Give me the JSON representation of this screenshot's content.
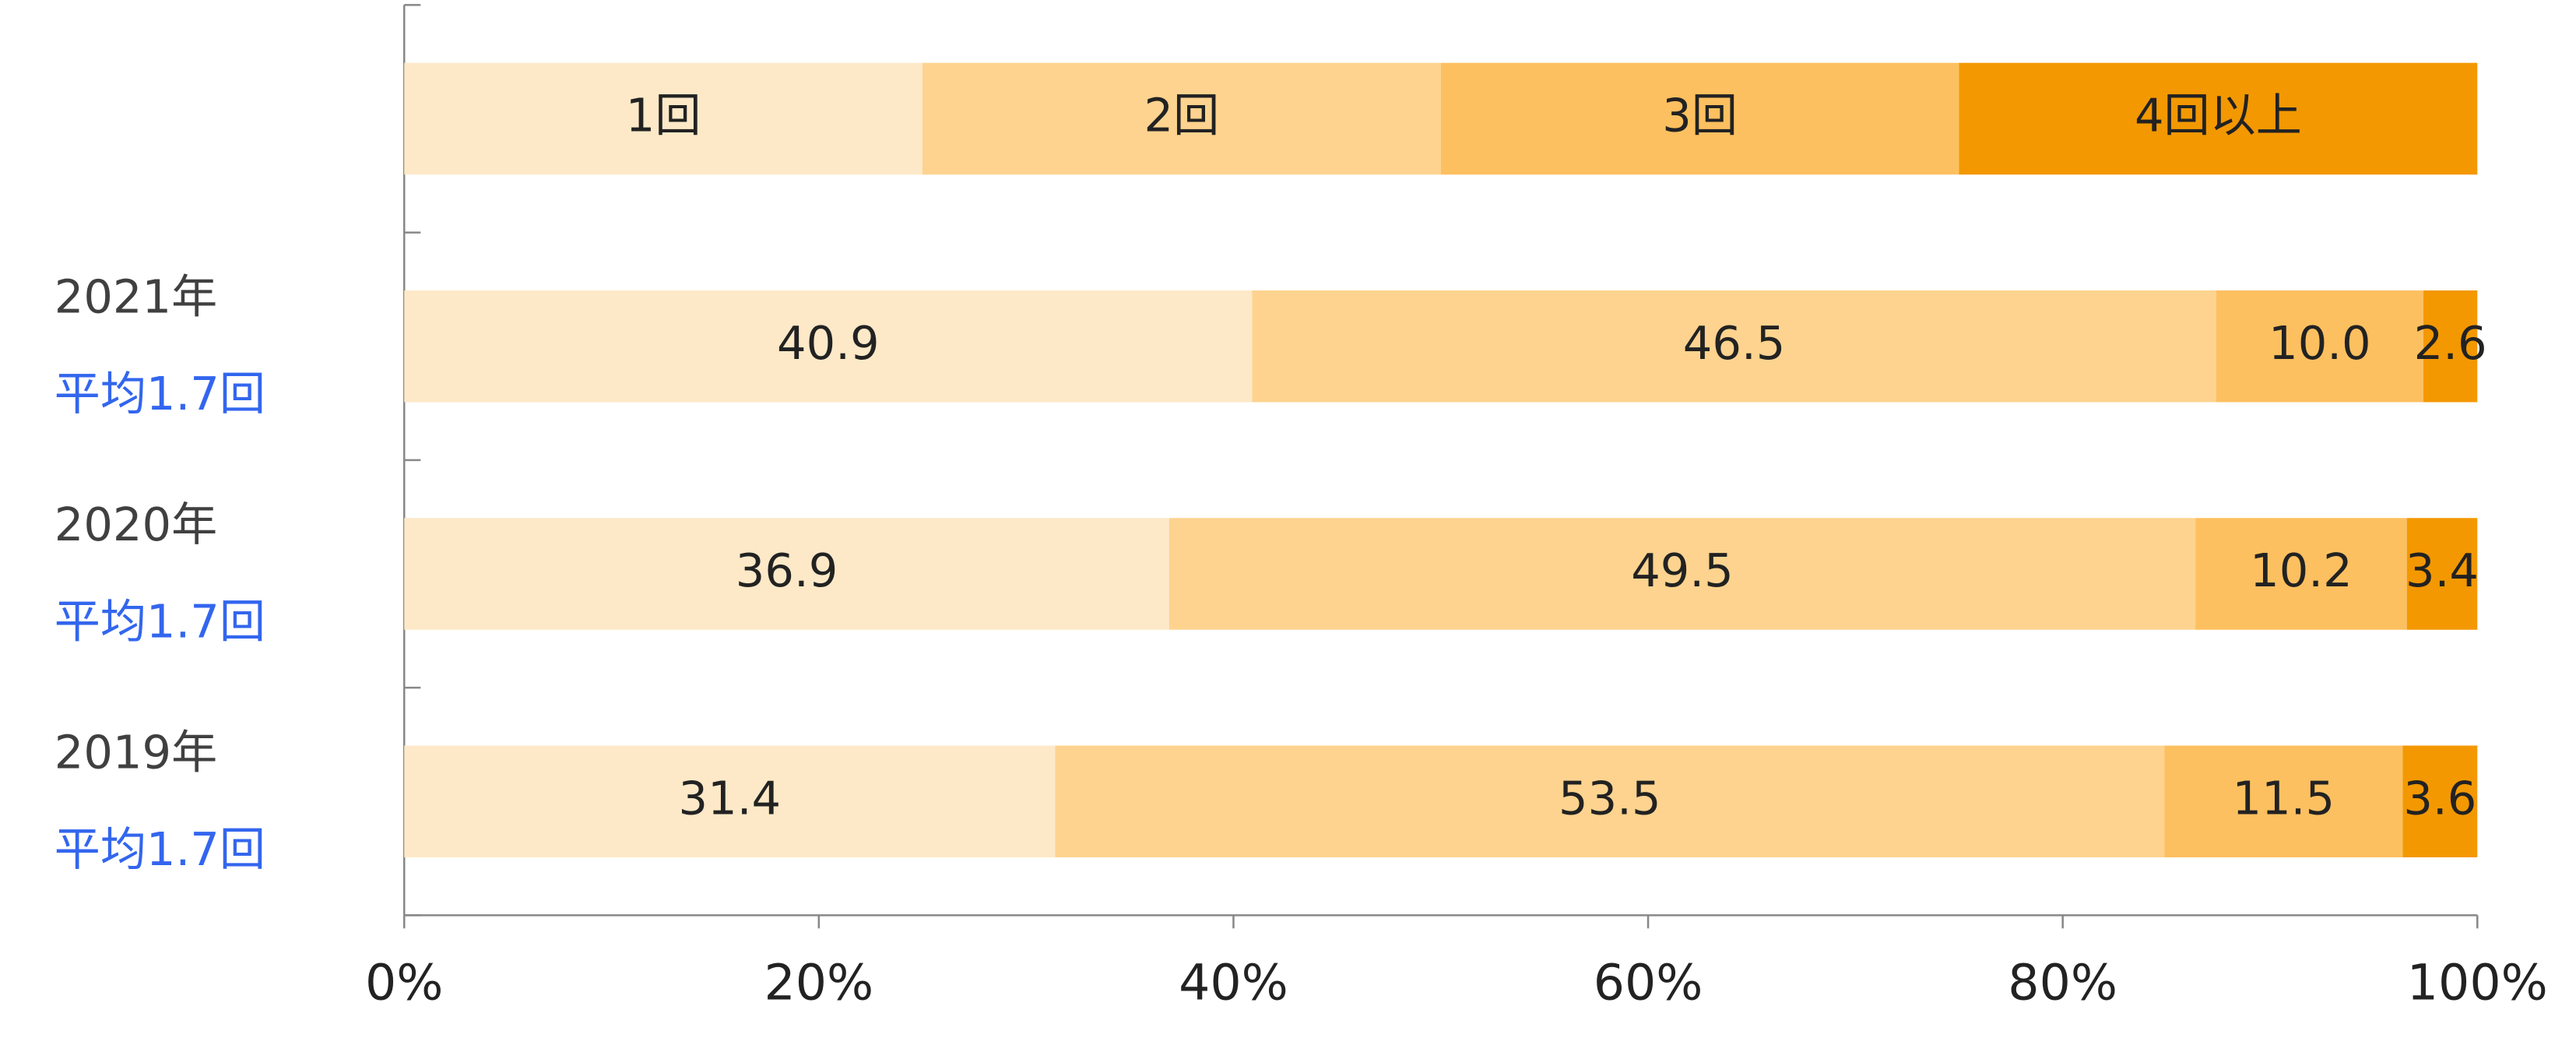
{
  "chart_data": {
    "type": "bar",
    "orientation": "horizontal",
    "stacked": true,
    "categories": [
      "2021年",
      "2020年",
      "2019年"
    ],
    "averages": [
      "平均1.7回",
      "平均1.7回",
      "平均1.7回"
    ],
    "series": [
      {
        "name": "1回",
        "color": "#fde9c8",
        "values": [
          40.9,
          36.9,
          31.4
        ],
        "value_labels": [
          "40.9",
          "36.9",
          "31.4"
        ]
      },
      {
        "name": "2回",
        "color": "#fdd38f",
        "values": [
          46.5,
          49.5,
          53.5
        ],
        "value_labels": [
          "46.5",
          "49.5",
          "53.5"
        ]
      },
      {
        "name": "3回",
        "color": "#fdc060",
        "values": [
          10.0,
          10.2,
          11.5
        ],
        "value_labels": [
          "10.0",
          "10.2",
          "11.5"
        ]
      },
      {
        "name": "4回以上",
        "color": "#f39800",
        "values": [
          2.6,
          3.4,
          3.6
        ],
        "value_labels": [
          "2.6",
          "3.4",
          "3.6"
        ]
      }
    ],
    "xlim": [
      0,
      100
    ],
    "xticks": [
      {
        "value": 0,
        "label": "0%"
      },
      {
        "value": 20,
        "label": "20%"
      },
      {
        "value": 40,
        "label": "40%"
      },
      {
        "value": 60,
        "label": "60%"
      },
      {
        "value": 80,
        "label": "80%"
      },
      {
        "value": 100,
        "label": "100%"
      }
    ],
    "legend": "top"
  }
}
